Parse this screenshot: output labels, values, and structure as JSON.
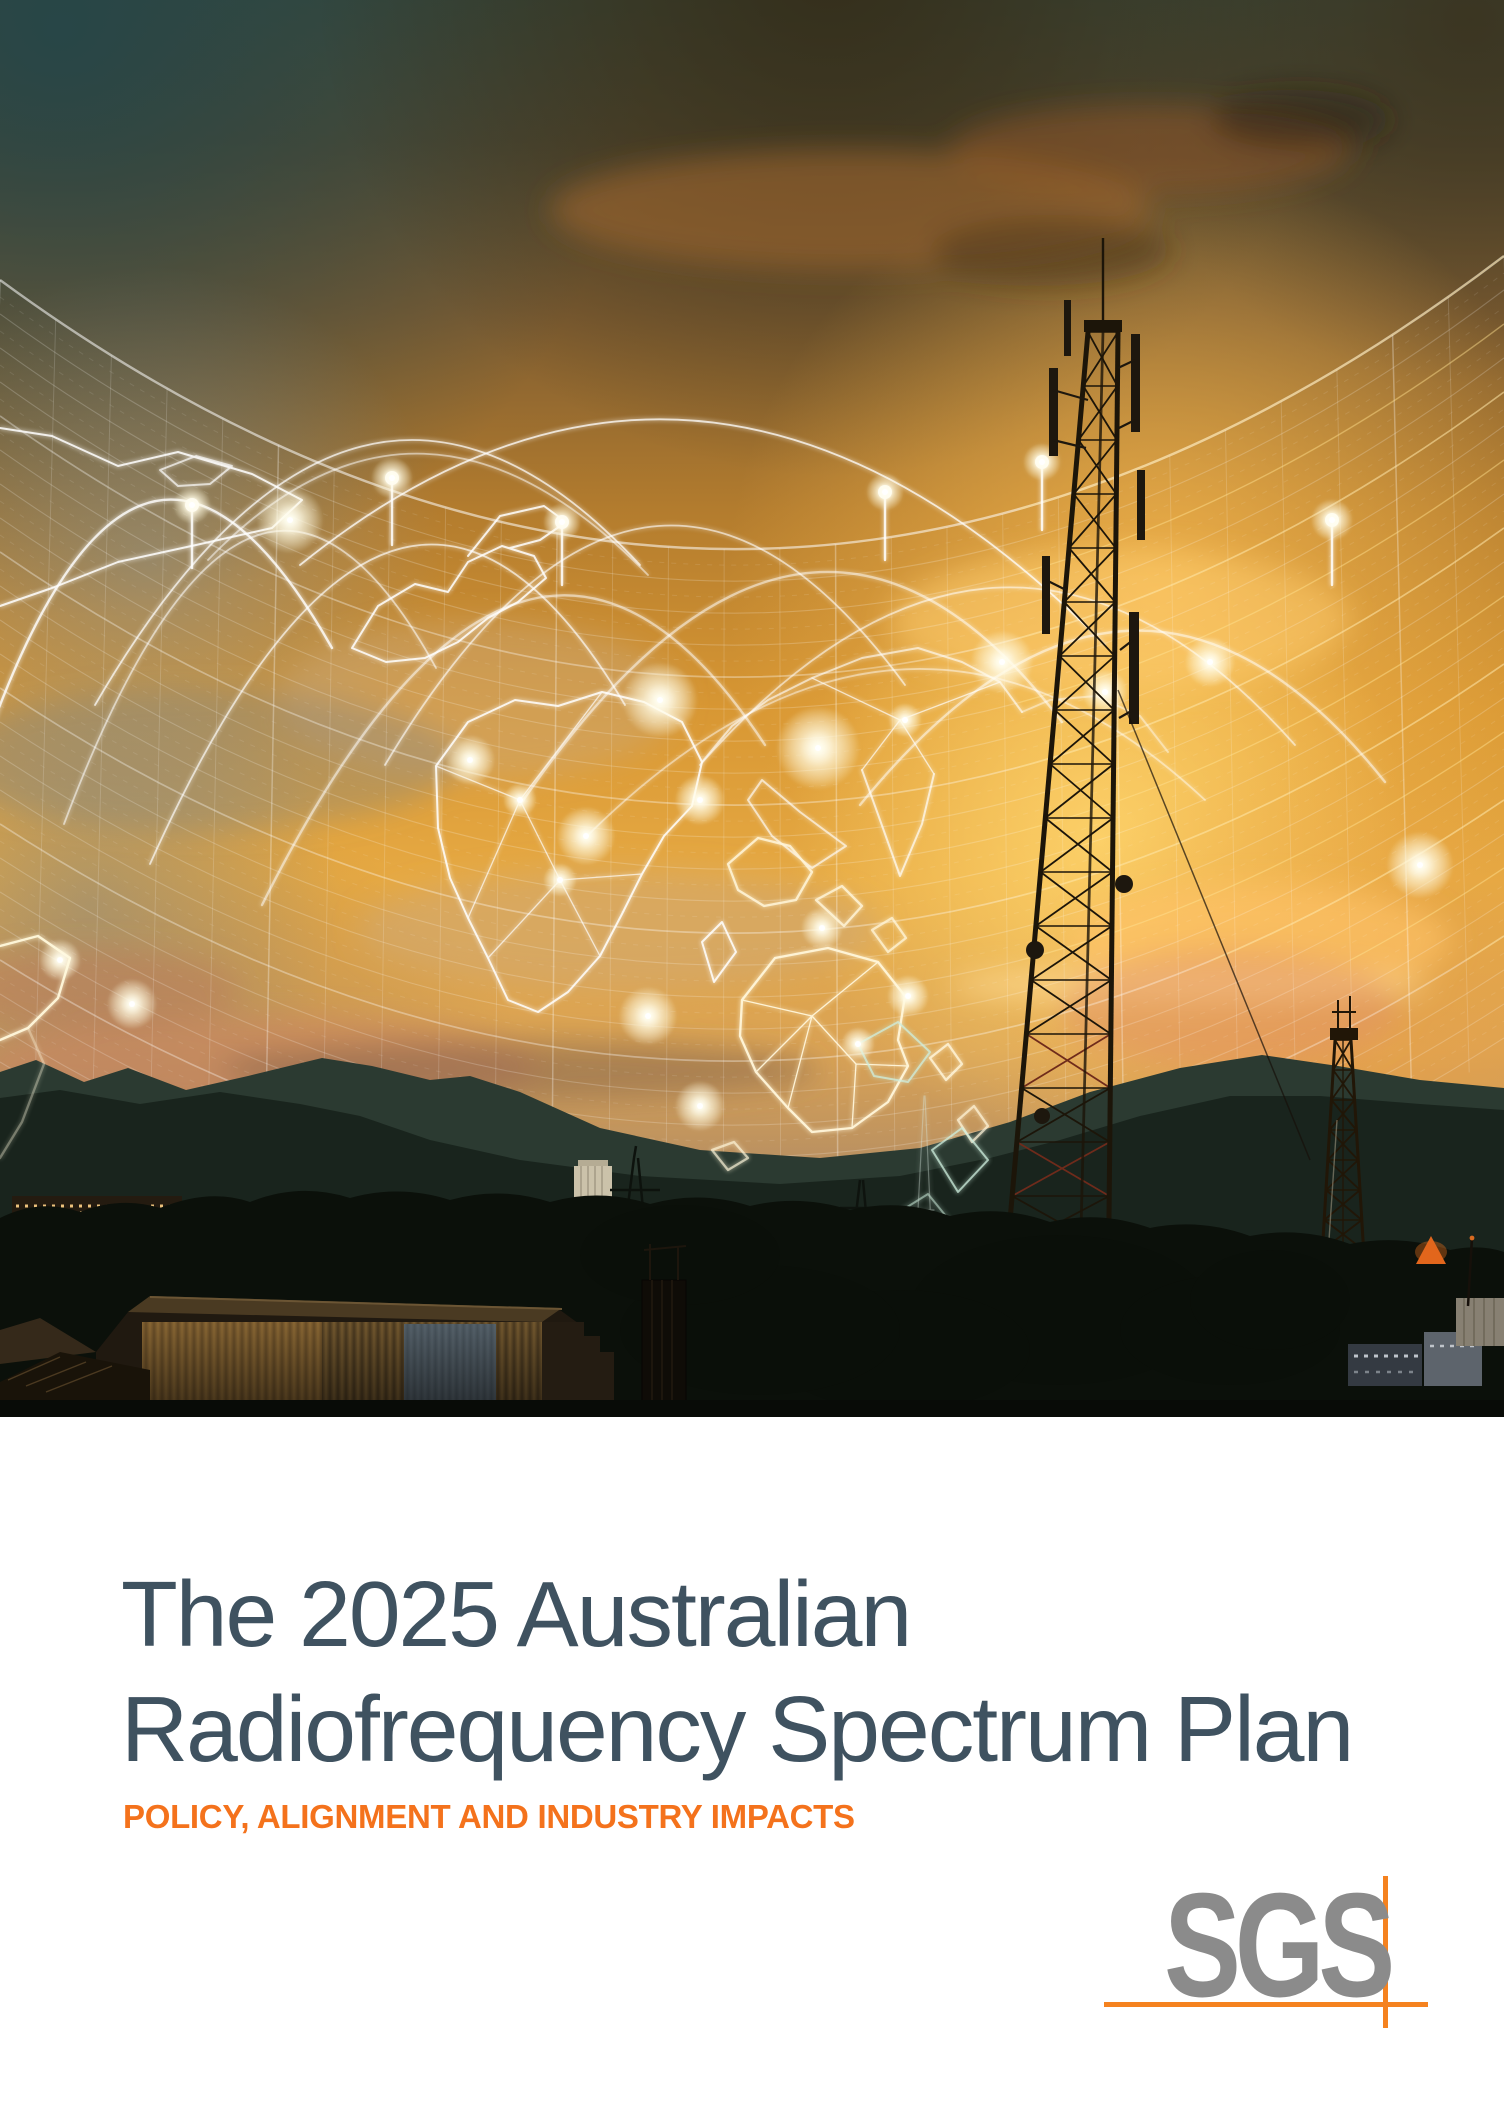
{
  "cover": {
    "title_line1": "The 2025 Australian",
    "title_line2": "Radiofrequency Spectrum Plan",
    "subtitle": "POLICY, ALIGNMENT AND INDUSTRY IMPACTS",
    "brand": {
      "logo_text": "SGS"
    }
  },
  "colors": {
    "title_text": "#3F5260",
    "subtitle_orange": "#F4721C",
    "logo_gray": "#8B8B8B",
    "logo_orange": "#F5821F",
    "page_background": "#FFFFFF"
  }
}
